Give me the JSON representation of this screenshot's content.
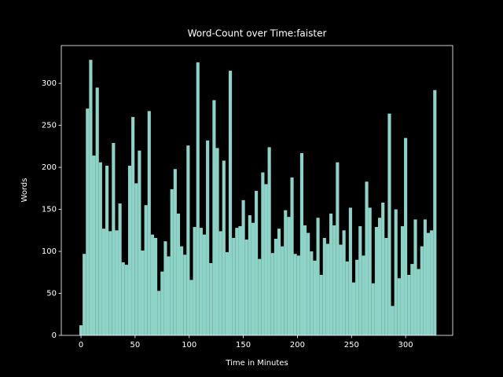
{
  "chart_data": {
    "type": "bar",
    "title": "Word-Count over Time:faister",
    "xlabel": "Time in Minutes",
    "ylabel": "Words",
    "x": [
      0,
      3,
      6,
      9,
      12,
      15,
      18,
      21,
      24,
      27,
      30,
      33,
      36,
      39,
      42,
      45,
      48,
      51,
      54,
      57,
      60,
      63,
      66,
      69,
      72,
      75,
      78,
      81,
      84,
      87,
      90,
      93,
      96,
      99,
      102,
      105,
      108,
      111,
      114,
      117,
      120,
      123,
      126,
      129,
      132,
      135,
      138,
      141,
      144,
      147,
      150,
      153,
      156,
      159,
      162,
      165,
      168,
      171,
      174,
      177,
      180,
      183,
      186,
      189,
      192,
      195,
      198,
      201,
      204,
      207,
      210,
      213,
      216,
      219,
      222,
      225,
      228,
      231,
      234,
      237,
      240,
      243,
      246,
      249,
      252,
      255,
      258,
      261,
      264,
      267,
      270,
      273,
      276,
      279,
      282,
      285,
      288,
      291,
      294,
      297,
      300,
      303,
      306,
      309,
      312,
      315,
      318,
      321,
      324,
      327
    ],
    "values": [
      12,
      97,
      270,
      328,
      214,
      295,
      206,
      127,
      202,
      124,
      229,
      125,
      157,
      87,
      84,
      202,
      260,
      181,
      220,
      101,
      155,
      267,
      120,
      116,
      53,
      76,
      112,
      94,
      174,
      198,
      145,
      106,
      96,
      226,
      66,
      129,
      325,
      128,
      120,
      232,
      86,
      280,
      223,
      124,
      208,
      99,
      315,
      116,
      128,
      130,
      161,
      114,
      143,
      134,
      172,
      91,
      194,
      180,
      224,
      98,
      115,
      127,
      106,
      149,
      141,
      188,
      97,
      95,
      217,
      131,
      122,
      100,
      89,
      140,
      72,
      116,
      109,
      145,
      131,
      206,
      108,
      125,
      88,
      152,
      63,
      90,
      130,
      95,
      183,
      152,
      62,
      129,
      140,
      158,
      116,
      264,
      35,
      150,
      68,
      130,
      235,
      72,
      85,
      138,
      79,
      106,
      138,
      122,
      125,
      292
    ],
    "color": "#8dd3c7",
    "xlim": [
      -18.2,
      343.5
    ],
    "ylim": [
      0,
      345
    ],
    "xticks": [
      0,
      50,
      100,
      150,
      200,
      250,
      300
    ],
    "yticks": [
      0,
      50,
      100,
      150,
      200,
      250,
      300
    ]
  }
}
